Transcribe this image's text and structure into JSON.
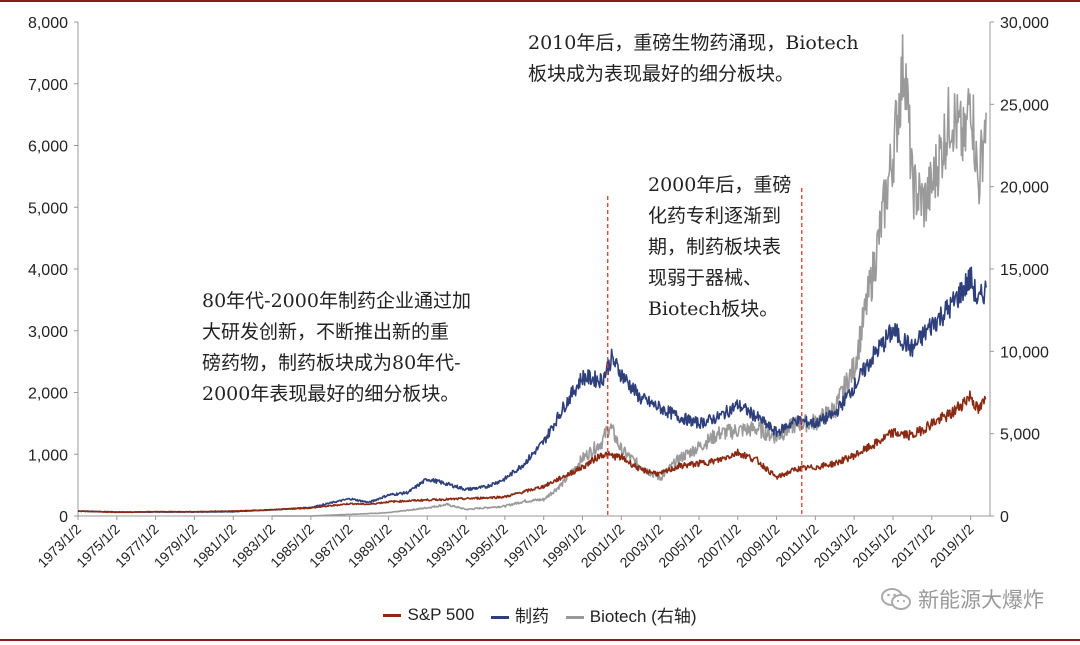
{
  "chart_data": {
    "type": "line",
    "title": "",
    "x": [
      "1973/1/2",
      "1975/1/2",
      "1977/1/2",
      "1979/1/2",
      "1981/1/2",
      "1983/1/2",
      "1985/1/2",
      "1987/1/2",
      "1989/1/2",
      "1991/1/2",
      "1993/1/2",
      "1995/1/2",
      "1997/1/2",
      "1999/1/2",
      "2001/1/2",
      "2003/1/2",
      "2005/1/2",
      "2007/1/2",
      "2009/1/2",
      "2011/1/2",
      "2013/1/2",
      "2015/1/2",
      "2017/1/2",
      "2019/1/2"
    ],
    "x_range": [
      1973.0,
      2020.0
    ],
    "y_left": {
      "min": 0,
      "max": 8000,
      "ticks": [
        "0",
        "1,000",
        "2,000",
        "3,000",
        "4,000",
        "5,000",
        "6,000",
        "7,000",
        "8,000"
      ]
    },
    "y_right": {
      "min": 0,
      "max": 30000,
      "ticks": [
        "0",
        "5,000",
        "10,000",
        "15,000",
        "20,000",
        "25,000",
        "30,000"
      ]
    },
    "series": [
      {
        "name": "S&P 500",
        "axis": "left",
        "color": "#8b2a12",
        "points": [
          [
            1973,
            80
          ],
          [
            1975,
            60
          ],
          [
            1977,
            70
          ],
          [
            1979,
            70
          ],
          [
            1981,
            80
          ],
          [
            1983,
            100
          ],
          [
            1985,
            130
          ],
          [
            1987,
            200
          ],
          [
            1988,
            190
          ],
          [
            1989,
            230
          ],
          [
            1991,
            260
          ],
          [
            1993,
            280
          ],
          [
            1995,
            310
          ],
          [
            1997,
            480
          ],
          [
            1999,
            790
          ],
          [
            2000,
            1000
          ],
          [
            2001,
            950
          ],
          [
            2002,
            750
          ],
          [
            2003,
            680
          ],
          [
            2004,
            810
          ],
          [
            2005,
            850
          ],
          [
            2006,
            900
          ],
          [
            2007,
            1030
          ],
          [
            2008,
            900
          ],
          [
            2009,
            620
          ],
          [
            2010,
            760
          ],
          [
            2011,
            790
          ],
          [
            2012,
            850
          ],
          [
            2013,
            980
          ],
          [
            2014,
            1150
          ],
          [
            2015,
            1350
          ],
          [
            2016,
            1300
          ],
          [
            2017,
            1500
          ],
          [
            2018,
            1650
          ],
          [
            2019,
            1950
          ],
          [
            2019.4,
            1700
          ],
          [
            2019.8,
            1900
          ]
        ]
      },
      {
        "name": "制药",
        "axis": "left",
        "color": "#2e3f7c",
        "points": [
          [
            1973,
            80
          ],
          [
            1975,
            65
          ],
          [
            1977,
            65
          ],
          [
            1979,
            65
          ],
          [
            1981,
            70
          ],
          [
            1983,
            100
          ],
          [
            1985,
            140
          ],
          [
            1987,
            280
          ],
          [
            1988,
            220
          ],
          [
            1989,
            340
          ],
          [
            1990,
            380
          ],
          [
            1991,
            600
          ],
          [
            1992,
            520
          ],
          [
            1993,
            430
          ],
          [
            1994,
            470
          ],
          [
            1995,
            600
          ],
          [
            1996,
            850
          ],
          [
            1997,
            1200
          ],
          [
            1998,
            1750
          ],
          [
            1999,
            2250
          ],
          [
            2000,
            2200
          ],
          [
            2000.5,
            2550
          ],
          [
            2001,
            2300
          ],
          [
            2002,
            1900
          ],
          [
            2003,
            1750
          ],
          [
            2004,
            1600
          ],
          [
            2005,
            1500
          ],
          [
            2006,
            1600
          ],
          [
            2007,
            1800
          ],
          [
            2008,
            1600
          ],
          [
            2009,
            1350
          ],
          [
            2010,
            1550
          ],
          [
            2011,
            1500
          ],
          [
            2012,
            1650
          ],
          [
            2013,
            2100
          ],
          [
            2014,
            2600
          ],
          [
            2015,
            3000
          ],
          [
            2016,
            2700
          ],
          [
            2017,
            3100
          ],
          [
            2018,
            3400
          ],
          [
            2019,
            3850
          ],
          [
            2019.4,
            3450
          ],
          [
            2019.8,
            3700
          ]
        ]
      },
      {
        "name": "Biotech (右轴)",
        "axis": "right",
        "color": "#9a9a9a",
        "points": [
          [
            1983,
            0
          ],
          [
            1985,
            0
          ],
          [
            1987,
            100
          ],
          [
            1989,
            200
          ],
          [
            1991,
            500
          ],
          [
            1992,
            700
          ],
          [
            1993,
            400
          ],
          [
            1995,
            600
          ],
          [
            1996,
            900
          ],
          [
            1997,
            1000
          ],
          [
            1998,
            2000
          ],
          [
            1999,
            3500
          ],
          [
            2000,
            4500
          ],
          [
            2000.4,
            5500
          ],
          [
            2001,
            4000
          ],
          [
            2002,
            3000
          ],
          [
            2003,
            2300
          ],
          [
            2004,
            3500
          ],
          [
            2005,
            4200
          ],
          [
            2006,
            5000
          ],
          [
            2007,
            5200
          ],
          [
            2008,
            5300
          ],
          [
            2009,
            4800
          ],
          [
            2010,
            5600
          ],
          [
            2011,
            5700
          ],
          [
            2012,
            6500
          ],
          [
            2013,
            9000
          ],
          [
            2014,
            15000
          ],
          [
            2015,
            22000
          ],
          [
            2015.6,
            28000
          ],
          [
            2016,
            20000
          ],
          [
            2016.6,
            19000
          ],
          [
            2017,
            20000
          ],
          [
            2018,
            24500
          ],
          [
            2018.7,
            22500
          ],
          [
            2019,
            26000
          ],
          [
            2019.4,
            20000
          ],
          [
            2019.8,
            24500
          ]
        ]
      }
    ],
    "vlines": [
      2000.3,
      2010.3
    ]
  },
  "annotations": {
    "a1": "2010年后，重磅生物药涌现，Biotech\n板块成为表现最好的细分板块。",
    "a2": "2000年后，重磅\n化药专利逐渐到\n期，制药板块表\n现弱于器械、\nBiotech板块。",
    "a3": "80年代-2000年制药企业通过加\n大研发创新，不断推出新的重\n磅药物，制药板块成为80年代-\n2000年表现最好的细分板块。"
  },
  "legend": {
    "sp500": "S&P 500",
    "pharma": "制药",
    "biotech": "Biotech (右轴)"
  },
  "watermark": "新能源大爆炸"
}
